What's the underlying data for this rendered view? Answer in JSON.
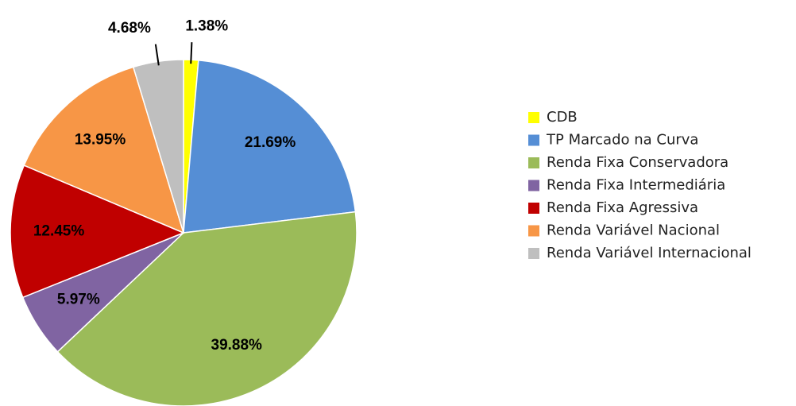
{
  "chart_data": {
    "type": "pie",
    "categories": [
      "CDB",
      "TP Marcado na Curva",
      "Renda Fixa Conservadora",
      "Renda Fixa Intermediária",
      "Renda Fixa Agressiva",
      "Renda Variável Nacional",
      "Renda Variável Internacional"
    ],
    "values": [
      1.38,
      21.69,
      39.88,
      5.97,
      12.45,
      13.95,
      4.68
    ],
    "value_labels": [
      "1.38%",
      "21.69%",
      "39.88%",
      "5.97%",
      "12.45%",
      "13.95%",
      "4.68%"
    ],
    "colors": [
      "#ffff00",
      "#558ed5",
      "#9bbb59",
      "#8064a2",
      "#c00000",
      "#f79646",
      "#bfbfbf"
    ],
    "legend": "right"
  }
}
